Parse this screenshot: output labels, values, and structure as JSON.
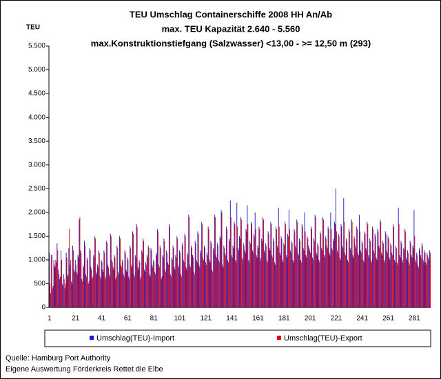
{
  "chart_data": {
    "type": "bar",
    "title": "TEU Umschlag Containerschiffe 2008 HH An/Ab",
    "subtitle": [
      "max. TEU Kapazität 2.640 - 5.560",
      "max.Konstruktionstiefgang (Salzwasser) <13,00 - >= 12,50 m (293)"
    ],
    "y_label": "TEU",
    "notes": [
      "Quelle: Hamburg Port Authority",
      "Eigene Auswertung Förderkreis Rettet die Elbe"
    ],
    "ylim": [
      0,
      5500
    ],
    "yticks": [
      0,
      500,
      {
        "value": 1000,
        "label": "1.000"
      },
      {
        "value": 1500,
        "label": "1.500"
      },
      {
        "value": 2000,
        "label": "2.000"
      },
      {
        "value": 2500,
        "label": "2.500"
      },
      {
        "value": 3000,
        "label": "3.000"
      },
      {
        "value": 3500,
        "label": "3.500"
      },
      {
        "value": 4000,
        "label": "4.000"
      },
      {
        "value": 4500,
        "label": "4.500"
      },
      {
        "value": 5000,
        "label": "5.000"
      },
      {
        "value": 5500,
        "label": "5.500"
      }
    ],
    "grid": false,
    "categories": [
      "1",
      null,
      null,
      null,
      null,
      null,
      null,
      null,
      null,
      null,
      null,
      null,
      null,
      null,
      null,
      null,
      null,
      null,
      null,
      null,
      "21",
      null,
      null,
      null,
      null,
      null,
      null,
      null,
      null,
      null,
      null,
      null,
      null,
      null,
      null,
      null,
      null,
      null,
      null,
      null,
      "41",
      null,
      null,
      null,
      null,
      null,
      null,
      null,
      null,
      null,
      null,
      null,
      null,
      null,
      null,
      null,
      null,
      null,
      null,
      null,
      "61",
      null,
      null,
      null,
      null,
      null,
      null,
      null,
      null,
      null,
      null,
      null,
      null,
      null,
      null,
      null,
      null,
      null,
      null,
      null,
      "81",
      null,
      null,
      null,
      null,
      null,
      null,
      null,
      null,
      null,
      null,
      null,
      null,
      null,
      null,
      null,
      null,
      null,
      null,
      null,
      "101",
      null,
      null,
      null,
      null,
      null,
      null,
      null,
      null,
      null,
      null,
      null,
      null,
      null,
      null,
      null,
      null,
      null,
      null,
      null,
      "121",
      null,
      null,
      null,
      null,
      null,
      null,
      null,
      null,
      null,
      null,
      null,
      null,
      null,
      null,
      null,
      null,
      null,
      null,
      null,
      "141",
      null,
      null,
      null,
      null,
      null,
      null,
      null,
      null,
      null,
      null,
      null,
      null,
      null,
      null,
      null,
      null,
      null,
      null,
      null,
      "161",
      null,
      null,
      null,
      null,
      null,
      null,
      null,
      null,
      null,
      null,
      null,
      null,
      null,
      null,
      null,
      null,
      null,
      null,
      null,
      "181",
      null,
      null,
      null,
      null,
      null,
      null,
      null,
      null,
      null,
      null,
      null,
      null,
      null,
      null,
      null,
      null,
      null,
      null,
      null,
      "201",
      null,
      null,
      null,
      null,
      null,
      null,
      null,
      null,
      null,
      null,
      null,
      null,
      null,
      null,
      null,
      null,
      null,
      null,
      null,
      "221",
      null,
      null,
      null,
      null,
      null,
      null,
      null,
      null,
      null,
      null,
      null,
      null,
      null,
      null,
      null,
      null,
      null,
      null,
      null,
      "241",
      null,
      null,
      null,
      null,
      null,
      null,
      null,
      null,
      null,
      null,
      null,
      null,
      null,
      null,
      null,
      null,
      null,
      null,
      null,
      "261",
      null,
      null,
      null,
      null,
      null,
      null,
      null,
      null,
      null,
      null,
      null,
      null,
      null,
      null,
      null,
      null,
      null,
      null,
      null,
      "281",
      null,
      null,
      null,
      null,
      null,
      null,
      null,
      null,
      null,
      null,
      null,
      null
    ],
    "series": [
      {
        "name": "Umschlag(TEU)-Import",
        "color": "#1a1ac8",
        "values": [
          1150,
          300,
          1100,
          450,
          900,
          1000,
          1350,
          800,
          600,
          1200,
          500,
          700,
          400,
          1150,
          650,
          1250,
          900,
          550,
          1300,
          800,
          1000,
          750,
          1100,
          1850,
          1200,
          600,
          900,
          1400,
          700,
          1050,
          500,
          1250,
          850,
          600,
          1100,
          1500,
          750,
          900,
          1200,
          650,
          1000,
          800,
          1200,
          600,
          1400,
          900,
          700,
          1550,
          1000,
          850,
          1100,
          600,
          1300,
          750,
          1500,
          900,
          1000,
          700,
          1200,
          800,
          1050,
          650,
          1300,
          900,
          1600,
          700,
          1100,
          1750,
          850,
          1000,
          600,
          1200,
          1450,
          800,
          950,
          1100,
          1300,
          700,
          1250,
          900,
          1000,
          750,
          1150,
          1650,
          900,
          1300,
          600,
          1100,
          1450,
          800,
          1200,
          950,
          1750,
          700,
          1050,
          1300,
          850,
          1100,
          1500,
          900,
          1200,
          700,
          1350,
          1000,
          1550,
          850,
          1150,
          1950,
          900,
          1300,
          1100,
          750,
          1400,
          1000,
          1600,
          900,
          1200,
          1800,
          1050,
          1300,
          950,
          1150,
          1700,
          1000,
          1400,
          800,
          1250,
          1950,
          1100,
          1350,
          1000,
          1500,
          2050,
          900,
          1300,
          1150,
          1700,
          1000,
          1450,
          2250,
          1100,
          1300,
          1800,
          1000,
          2200,
          1250,
          1500,
          1900,
          1050,
          1350,
          1200,
          1650,
          2150,
          1000,
          1400,
          1800,
          1200,
          1550,
          2000,
          1100,
          1300,
          1700,
          1050,
          1450,
          1900,
          1200,
          1350,
          1000,
          1600,
          1250,
          1800,
          1100,
          1450,
          950,
          1700,
          1300,
          2100,
          1150,
          1500,
          1000,
          1350,
          1800,
          1100,
          1550,
          2050,
          1200,
          1400,
          1000,
          1650,
          1300,
          1850,
          1150,
          1450,
          1000,
          1750,
          1250,
          2000,
          1100,
          1500,
          1300,
          1200,
          1700,
          1050,
          1450,
          1950,
          1150,
          1350,
          1000,
          1600,
          1250,
          1900,
          1100,
          1500,
          1300,
          1700,
          1150,
          2000,
          1250,
          1450,
          1800,
          2500,
          1200,
          1550,
          1050,
          1750,
          1300,
          2300,
          1150,
          1450,
          1000,
          1650,
          1250,
          1850,
          1100,
          1500,
          1300,
          1700,
          1150,
          1950,
          1200,
          1400,
          1000,
          1600,
          1250,
          1800,
          1100,
          1450,
          1000,
          1700,
          1200,
          1550,
          1050,
          1650,
          1300,
          1850,
          1150,
          1400,
          1000,
          1600,
          1200,
          1500,
          1050,
          1350,
          1150,
          1750,
          1000,
          1300,
          950,
          2100,
          1100,
          1400,
          1000,
          1250,
          1650,
          1050,
          1200,
          950,
          1400,
          1100,
          1300,
          2050,
          1000,
          1150,
          900,
          1250,
          1100,
          1350,
          1000,
          1200,
          950,
          1150,
          1050,
          1200
        ]
      },
      {
        "name": "Umschlag(TEU)-Export",
        "color": "#e80000",
        "values": [
          500,
          1100,
          400,
          1000,
          850,
          950,
          1200,
          700,
          650,
          1000,
          450,
          600,
          500,
          1050,
          700,
          1650,
          1000,
          500,
          1200,
          750,
          900,
          700,
          1050,
          1900,
          1150,
          550,
          850,
          1300,
          650,
          1000,
          550,
          1200,
          800,
          650,
          1050,
          1450,
          700,
          850,
          1150,
          600,
          950,
          750,
          1150,
          650,
          1350,
          850,
          650,
          1500,
          950,
          800,
          1050,
          650,
          1250,
          700,
          1450,
          850,
          950,
          650,
          1150,
          750,
          1000,
          600,
          1250,
          850,
          1550,
          650,
          1050,
          1700,
          800,
          950,
          650,
          1150,
          1400,
          750,
          900,
          1050,
          1250,
          650,
          1200,
          850,
          950,
          700,
          1100,
          1600,
          850,
          1250,
          650,
          1050,
          1400,
          750,
          1150,
          900,
          1700,
          650,
          1000,
          1250,
          800,
          1050,
          1450,
          850,
          1150,
          650,
          1300,
          950,
          1500,
          800,
          1100,
          1900,
          850,
          1250,
          1050,
          700,
          1350,
          950,
          1550,
          850,
          1150,
          1750,
          1000,
          1250,
          900,
          1100,
          1650,
          950,
          1350,
          750,
          1200,
          1900,
          1050,
          1300,
          950,
          1450,
          2000,
          850,
          1250,
          1100,
          1650,
          950,
          1400,
          1900,
          1050,
          1250,
          1750,
          950,
          1700,
          1200,
          1450,
          1850,
          1000,
          1300,
          1150,
          1600,
          1750,
          950,
          1350,
          1750,
          1150,
          1500,
          1650,
          1050,
          1250,
          1650,
          1000,
          1400,
          1850,
          1150,
          1300,
          950,
          1550,
          1200,
          1750,
          1050,
          1400,
          900,
          1650,
          1250,
          1700,
          1100,
          1450,
          950,
          1300,
          1750,
          1050,
          1500,
          1650,
          1150,
          1350,
          950,
          1600,
          1250,
          1800,
          1100,
          1400,
          950,
          1700,
          1200,
          1600,
          1050,
          1450,
          1250,
          1150,
          1650,
          1000,
          1400,
          1900,
          1100,
          1300,
          950,
          1550,
          1200,
          1850,
          1050,
          1450,
          1250,
          1650,
          1100,
          1650,
          1200,
          1400,
          1750,
          1600,
          1150,
          1500,
          1000,
          1700,
          1250,
          1800,
          1100,
          1400,
          950,
          1600,
          1200,
          1800,
          1050,
          1450,
          1250,
          1650,
          1100,
          1600,
          1150,
          1350,
          950,
          1550,
          1200,
          1750,
          1050,
          1400,
          950,
          1650,
          1150,
          1500,
          1000,
          1600,
          1250,
          1800,
          1100,
          1350,
          950,
          1550,
          1150,
          1450,
          1000,
          1300,
          1100,
          1700,
          950,
          1250,
          900,
          1750,
          1050,
          1350,
          950,
          1200,
          1600,
          1000,
          1150,
          900,
          1350,
          1050,
          1250,
          1500,
          950,
          1100,
          850,
          1200,
          1050,
          1300,
          950,
          1150,
          900,
          1100,
          1000,
          1150
        ]
      }
    ]
  }
}
